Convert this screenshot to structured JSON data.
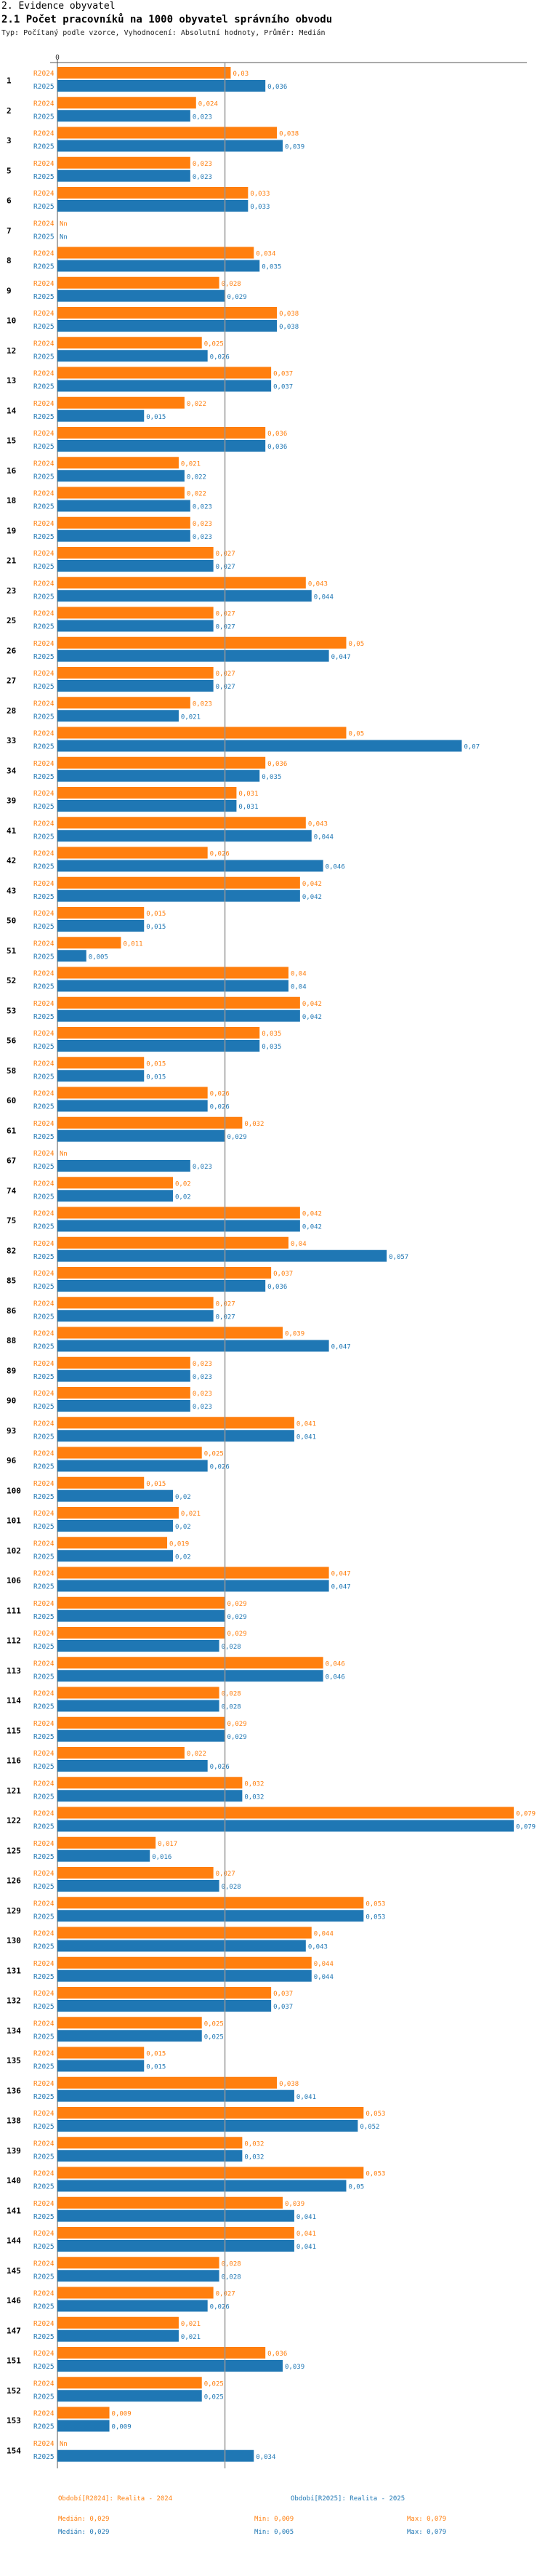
{
  "header": {
    "section": "2. Evidence obyvatel",
    "title": "2.1 Počet pracovníků na 1000 obyvatel správního obvodu",
    "subtitle": "Typ: Počítaný podle vzorce, Vyhodnocení: Absolutní hodnoty, Průměr: Medián"
  },
  "colors": {
    "r2024": "#ff7f0e",
    "r2025": "#1f77b4",
    "axis": "#555555",
    "grid": "#999999"
  },
  "chart_data": {
    "type": "bar",
    "orientation": "horizontal",
    "title": "2.1 Počet pracovníků na 1000 obyvatel správního obvodu",
    "xlim": [
      0,
      0.079
    ],
    "x_tick_labels": [
      "0"
    ],
    "median_marker": 0.029,
    "series_names": [
      "R2024",
      "R2025"
    ],
    "categories": [
      "1",
      "2",
      "3",
      "5",
      "6",
      "7",
      "8",
      "9",
      "10",
      "12",
      "13",
      "14",
      "15",
      "16",
      "18",
      "19",
      "21",
      "23",
      "25",
      "26",
      "27",
      "28",
      "33",
      "34",
      "39",
      "41",
      "42",
      "43",
      "50",
      "51",
      "52",
      "53",
      "56",
      "58",
      "60",
      "61",
      "67",
      "74",
      "75",
      "82",
      "85",
      "86",
      "88",
      "89",
      "90",
      "93",
      "96",
      "100",
      "101",
      "102",
      "106",
      "111",
      "112",
      "113",
      "114",
      "115",
      "116",
      "121",
      "122",
      "125",
      "126",
      "129",
      "130",
      "131",
      "132",
      "134",
      "135",
      "136",
      "138",
      "139",
      "140",
      "141",
      "144",
      "145",
      "146",
      "147",
      "151",
      "152",
      "153",
      "154"
    ],
    "values_display": [
      [
        "0,03",
        "0,036"
      ],
      [
        "0,024",
        "0,023"
      ],
      [
        "0,038",
        "0,039"
      ],
      [
        "0,023",
        "0,023"
      ],
      [
        "0,033",
        "0,033"
      ],
      [
        "Nn",
        "Nn"
      ],
      [
        "0,034",
        "0,035"
      ],
      [
        "0,028",
        "0,029"
      ],
      [
        "0,038",
        "0,038"
      ],
      [
        "0,025",
        "0,026"
      ],
      [
        "0,037",
        "0,037"
      ],
      [
        "0,022",
        "0,015"
      ],
      [
        "0,036",
        "0,036"
      ],
      [
        "0,021",
        "0,022"
      ],
      [
        "0,022",
        "0,023"
      ],
      [
        "0,023",
        "0,023"
      ],
      [
        "0,027",
        "0,027"
      ],
      [
        "0,043",
        "0,044"
      ],
      [
        "0,027",
        "0,027"
      ],
      [
        "0,05",
        "0,047"
      ],
      [
        "0,027",
        "0,027"
      ],
      [
        "0,023",
        "0,021"
      ],
      [
        "0,05",
        "0,07"
      ],
      [
        "0,036",
        "0,035"
      ],
      [
        "0,031",
        "0,031"
      ],
      [
        "0,043",
        "0,044"
      ],
      [
        "0,026",
        "0,046"
      ],
      [
        "0,042",
        "0,042"
      ],
      [
        "0,015",
        "0,015"
      ],
      [
        "0,011",
        "0,005"
      ],
      [
        "0,04",
        "0,04"
      ],
      [
        "0,042",
        "0,042"
      ],
      [
        "0,035",
        "0,035"
      ],
      [
        "0,015",
        "0,015"
      ],
      [
        "0,026",
        "0,026"
      ],
      [
        "0,032",
        "0,029"
      ],
      [
        "Nn",
        "0,023"
      ],
      [
        "0,02",
        "0,02"
      ],
      [
        "0,042",
        "0,042"
      ],
      [
        "0,04",
        "0,057"
      ],
      [
        "0,037",
        "0,036"
      ],
      [
        "0,027",
        "0,027"
      ],
      [
        "0,039",
        "0,047"
      ],
      [
        "0,023",
        "0,023"
      ],
      [
        "0,023",
        "0,023"
      ],
      [
        "0,041",
        "0,041"
      ],
      [
        "0,025",
        "0,026"
      ],
      [
        "0,015",
        "0,02"
      ],
      [
        "0,021",
        "0,02"
      ],
      [
        "0,019",
        "0,02"
      ],
      [
        "0,047",
        "0,047"
      ],
      [
        "0,029",
        "0,029"
      ],
      [
        "0,029",
        "0,028"
      ],
      [
        "0,046",
        "0,046"
      ],
      [
        "0,028",
        "0,028"
      ],
      [
        "0,029",
        "0,029"
      ],
      [
        "0,022",
        "0,026"
      ],
      [
        "0,032",
        "0,032"
      ],
      [
        "0,079",
        "0,079"
      ],
      [
        "0,017",
        "0,016"
      ],
      [
        "0,027",
        "0,028"
      ],
      [
        "0,053",
        "0,053"
      ],
      [
        "0,044",
        "0,043"
      ],
      [
        "0,044",
        "0,044"
      ],
      [
        "0,037",
        "0,037"
      ],
      [
        "0,025",
        "0,025"
      ],
      [
        "0,015",
        "0,015"
      ],
      [
        "0,038",
        "0,041"
      ],
      [
        "0,053",
        "0,052"
      ],
      [
        "0,032",
        "0,032"
      ],
      [
        "0,053",
        "0,05"
      ],
      [
        "0,039",
        "0,041"
      ],
      [
        "0,041",
        "0,041"
      ],
      [
        "0,028",
        "0,028"
      ],
      [
        "0,027",
        "0,026"
      ],
      [
        "0,021",
        "0,021"
      ],
      [
        "0,036",
        "0,039"
      ],
      [
        "0,025",
        "0,025"
      ],
      [
        "0,009",
        "0,009"
      ],
      [
        "Nn",
        "0,034"
      ]
    ],
    "values": [
      [
        0.03,
        0.036
      ],
      [
        0.024,
        0.023
      ],
      [
        0.038,
        0.039
      ],
      [
        0.023,
        0.023
      ],
      [
        0.033,
        0.033
      ],
      [
        null,
        null
      ],
      [
        0.034,
        0.035
      ],
      [
        0.028,
        0.029
      ],
      [
        0.038,
        0.038
      ],
      [
        0.025,
        0.026
      ],
      [
        0.037,
        0.037
      ],
      [
        0.022,
        0.015
      ],
      [
        0.036,
        0.036
      ],
      [
        0.021,
        0.022
      ],
      [
        0.022,
        0.023
      ],
      [
        0.023,
        0.023
      ],
      [
        0.027,
        0.027
      ],
      [
        0.043,
        0.044
      ],
      [
        0.027,
        0.027
      ],
      [
        0.05,
        0.047
      ],
      [
        0.027,
        0.027
      ],
      [
        0.023,
        0.021
      ],
      [
        0.05,
        0.07
      ],
      [
        0.036,
        0.035
      ],
      [
        0.031,
        0.031
      ],
      [
        0.043,
        0.044
      ],
      [
        0.026,
        0.046
      ],
      [
        0.042,
        0.042
      ],
      [
        0.015,
        0.015
      ],
      [
        0.011,
        0.005
      ],
      [
        0.04,
        0.04
      ],
      [
        0.042,
        0.042
      ],
      [
        0.035,
        0.035
      ],
      [
        0.015,
        0.015
      ],
      [
        0.026,
        0.026
      ],
      [
        0.032,
        0.029
      ],
      [
        null,
        0.023
      ],
      [
        0.02,
        0.02
      ],
      [
        0.042,
        0.042
      ],
      [
        0.04,
        0.057
      ],
      [
        0.037,
        0.036
      ],
      [
        0.027,
        0.027
      ],
      [
        0.039,
        0.047
      ],
      [
        0.023,
        0.023
      ],
      [
        0.023,
        0.023
      ],
      [
        0.041,
        0.041
      ],
      [
        0.025,
        0.026
      ],
      [
        0.015,
        0.02
      ],
      [
        0.021,
        0.02
      ],
      [
        0.019,
        0.02
      ],
      [
        0.047,
        0.047
      ],
      [
        0.029,
        0.029
      ],
      [
        0.029,
        0.028
      ],
      [
        0.046,
        0.046
      ],
      [
        0.028,
        0.028
      ],
      [
        0.029,
        0.029
      ],
      [
        0.022,
        0.026
      ],
      [
        0.032,
        0.032
      ],
      [
        0.079,
        0.079
      ],
      [
        0.017,
        0.016
      ],
      [
        0.027,
        0.028
      ],
      [
        0.053,
        0.053
      ],
      [
        0.044,
        0.043
      ],
      [
        0.044,
        0.044
      ],
      [
        0.037,
        0.037
      ],
      [
        0.025,
        0.025
      ],
      [
        0.015,
        0.015
      ],
      [
        0.038,
        0.041
      ],
      [
        0.053,
        0.052
      ],
      [
        0.032,
        0.032
      ],
      [
        0.053,
        0.05
      ],
      [
        0.039,
        0.041
      ],
      [
        0.041,
        0.041
      ],
      [
        0.028,
        0.028
      ],
      [
        0.027,
        0.026
      ],
      [
        0.021,
        0.021
      ],
      [
        0.036,
        0.039
      ],
      [
        0.025,
        0.025
      ],
      [
        0.009,
        0.009
      ],
      [
        null,
        0.034
      ]
    ],
    "legend": {
      "r2024": {
        "title": "Období[R2024]: Realita - 2024",
        "median": "Medián: 0,029",
        "min": "Min: 0,009",
        "max": "Max: 0,079"
      },
      "r2025": {
        "title": "Období[R2025]: Realita - 2025",
        "median": "Medián: 0,029",
        "min": "Min: 0,005",
        "max": "Max: 0,079"
      }
    }
  }
}
